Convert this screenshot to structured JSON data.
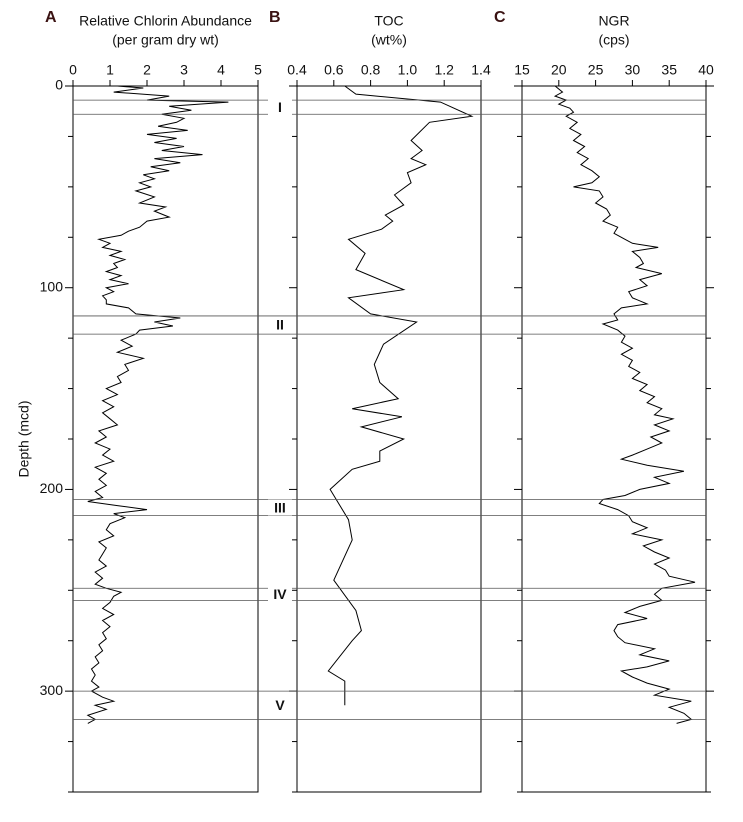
{
  "chart_data": [
    {
      "type": "line",
      "panel": "A",
      "title": "Relative Chlorin Abundance",
      "subtitle": "(per gram dry wt)",
      "ylabel": "Depth (mcd)",
      "color": "#000000",
      "xlim": [
        0,
        5
      ],
      "xticks": [
        0,
        1,
        2,
        3,
        4,
        5
      ],
      "ylim": [
        0,
        350
      ],
      "yticks": [
        0,
        100,
        200,
        300
      ],
      "yminorticks": [
        25,
        50,
        75,
        125,
        150,
        175,
        225,
        250,
        275,
        325,
        350
      ],
      "depth": [
        0,
        1,
        3,
        5,
        7,
        8,
        10,
        12,
        14,
        16,
        18,
        20,
        22,
        24,
        26,
        28,
        30,
        32,
        34,
        36,
        38,
        40,
        42,
        44,
        46,
        48,
        50,
        52,
        55,
        58,
        60,
        62,
        65,
        67,
        70,
        72,
        74,
        76,
        78,
        80,
        82,
        84,
        86,
        88,
        90,
        92,
        94,
        96,
        98,
        100,
        102,
        104,
        106,
        108,
        110,
        113,
        115,
        117,
        119,
        121,
        123,
        126,
        129,
        132,
        135,
        138,
        141,
        144,
        147,
        150,
        153,
        156,
        159,
        162,
        165,
        168,
        171,
        174,
        177,
        180,
        183,
        186,
        189,
        192,
        195,
        198,
        201,
        204,
        206,
        208,
        210,
        212,
        214,
        217,
        220,
        223,
        226,
        229,
        232,
        235,
        238,
        241,
        244,
        247,
        249,
        251,
        253,
        256,
        259,
        262,
        265,
        268,
        271,
        274,
        277,
        280,
        283,
        286,
        289,
        292,
        295,
        298,
        300,
        303,
        305,
        307,
        309,
        312,
        314,
        316
      ],
      "values": [
        1.2,
        1.9,
        1.1,
        2.6,
        2.0,
        4.2,
        2.6,
        3.2,
        2.4,
        3.0,
        2.8,
        2.3,
        3.1,
        2.0,
        2.8,
        2.2,
        3.0,
        2.4,
        3.5,
        2.2,
        2.9,
        2.1,
        2.6,
        1.9,
        2.2,
        1.8,
        2.1,
        1.7,
        2.2,
        1.8,
        2.5,
        2.2,
        2.6,
        2.0,
        1.8,
        1.5,
        1.3,
        0.7,
        1.0,
        0.8,
        1.3,
        1.0,
        1.4,
        1.1,
        1.2,
        0.9,
        1.3,
        1.0,
        1.5,
        0.9,
        1.1,
        0.8,
        0.9,
        0.9,
        1.5,
        1.7,
        2.9,
        2.2,
        2.7,
        1.8,
        1.7,
        1.3,
        1.6,
        1.2,
        1.9,
        1.4,
        1.5,
        1.2,
        1.3,
        0.9,
        1.2,
        0.8,
        1.1,
        0.8,
        1.0,
        1.2,
        0.7,
        0.9,
        0.6,
        1.0,
        0.8,
        1.1,
        0.6,
        0.9,
        0.7,
        0.9,
        0.6,
        0.8,
        0.4,
        1.2,
        2.0,
        1.1,
        1.4,
        1.0,
        0.9,
        1.1,
        0.7,
        0.9,
        0.8,
        0.7,
        0.9,
        0.6,
        0.8,
        0.6,
        0.9,
        1.3,
        1.1,
        1.0,
        0.8,
        1.1,
        0.8,
        1.0,
        0.8,
        0.9,
        0.7,
        0.8,
        0.6,
        0.7,
        0.5,
        0.6,
        0.5,
        0.7,
        0.5,
        0.8,
        1.1,
        0.6,
        0.9,
        0.4,
        0.6,
        0.4
      ]
    },
    {
      "type": "line",
      "panel": "B",
      "title": "TOC",
      "subtitle": "(wt%)",
      "color": "#000000",
      "xlim": [
        0.4,
        1.4
      ],
      "xticks": [
        0.4,
        0.6,
        0.8,
        {
          "value": 1.0,
          "label": "1.0"
        },
        1.2,
        1.4
      ],
      "ylim": [
        0,
        350
      ],
      "yticks": [
        0,
        100,
        200,
        300
      ],
      "yminorticks": [
        25,
        50,
        75,
        125,
        150,
        175,
        225,
        250,
        275,
        325,
        350
      ],
      "depth": [
        0,
        4,
        8,
        15,
        18,
        27,
        32,
        36,
        39,
        43,
        48,
        54,
        59,
        64,
        67,
        71,
        76,
        83,
        91,
        101,
        105,
        113,
        117,
        128,
        138,
        147,
        155,
        160,
        164,
        169,
        175,
        181,
        186,
        190,
        200,
        215,
        225,
        245,
        260,
        270,
        275,
        290,
        295,
        307
      ],
      "values": [
        0.66,
        0.72,
        1.18,
        1.35,
        1.12,
        1.02,
        1.08,
        1.02,
        1.1,
        1.0,
        1.02,
        0.93,
        0.98,
        0.88,
        0.92,
        0.86,
        0.68,
        0.77,
        0.72,
        0.98,
        0.68,
        0.8,
        1.05,
        0.87,
        0.82,
        0.85,
        0.95,
        0.7,
        0.97,
        0.75,
        0.98,
        0.85,
        0.85,
        0.7,
        0.58,
        0.68,
        0.7,
        0.6,
        0.72,
        0.75,
        0.7,
        0.57,
        0.66,
        0.66
      ]
    },
    {
      "type": "line",
      "panel": "C",
      "title": "NGR",
      "subtitle": "(cps)",
      "color": "#000000",
      "xlim": [
        15,
        40
      ],
      "xticks": [
        15,
        20,
        25,
        30,
        35,
        40
      ],
      "ylim": [
        0,
        350
      ],
      "yticks": [
        0,
        100,
        200,
        300
      ],
      "yminorticks": [
        25,
        50,
        75,
        125,
        150,
        175,
        225,
        250,
        275,
        325,
        350
      ],
      "depth": [
        0,
        3,
        5,
        7,
        9,
        11,
        13,
        15,
        18,
        21,
        24,
        27,
        30,
        33,
        36,
        39,
        42,
        45,
        48,
        50,
        52,
        55,
        58,
        61,
        64,
        67,
        70,
        73,
        76,
        78,
        80,
        82,
        85,
        88,
        90,
        93,
        96,
        99,
        102,
        105,
        108,
        110,
        113,
        116,
        118,
        121,
        124,
        127,
        130,
        133,
        136,
        139,
        142,
        145,
        148,
        151,
        154,
        157,
        160,
        163,
        165,
        168,
        171,
        174,
        177,
        180,
        183,
        185,
        188,
        191,
        194,
        197,
        200,
        203,
        205,
        207,
        210,
        213,
        216,
        219,
        222,
        225,
        228,
        231,
        234,
        237,
        240,
        243,
        246,
        249,
        252,
        255,
        258,
        261,
        264,
        267,
        270,
        273,
        276,
        279,
        282,
        285,
        288,
        290,
        293,
        296,
        299,
        302,
        305,
        308,
        311,
        314,
        316
      ],
      "values": [
        19.5,
        20.5,
        19.5,
        21,
        20,
        21.5,
        22,
        21,
        22.5,
        21.5,
        23,
        22,
        23.5,
        22.5,
        24,
        23,
        24.5,
        25.5,
        24.5,
        22,
        25.5,
        26,
        25,
        26.5,
        27,
        26,
        28,
        27.5,
        29,
        30,
        33.5,
        30,
        31,
        31.5,
        30.5,
        34,
        31,
        32,
        29.5,
        30,
        32,
        28.5,
        27.5,
        28,
        26,
        28,
        29,
        28.5,
        30,
        28.5,
        30,
        29.5,
        31,
        30,
        32,
        31,
        33,
        32,
        34,
        33,
        35.5,
        33,
        35,
        32.5,
        34,
        32,
        30,
        28.5,
        32,
        37,
        33,
        35,
        31,
        29,
        26,
        25.5,
        28,
        29.5,
        30,
        32,
        30,
        34,
        31.5,
        33,
        35,
        33,
        34.5,
        35,
        38.5,
        34,
        33,
        34,
        31,
        29,
        32,
        28,
        27.5,
        28,
        29,
        33,
        31,
        35,
        32,
        28.5,
        30,
        32,
        35,
        33,
        38,
        35,
        37,
        38,
        36
      ]
    }
  ],
  "zones": [
    {
      "label": "I",
      "top": 7,
      "bottom": 14
    },
    {
      "label": "II",
      "top": 114,
      "bottom": 123
    },
    {
      "label": "III",
      "top": 205,
      "bottom": 213
    },
    {
      "label": "IV",
      "top": 249,
      "bottom": 255
    },
    {
      "label": "V",
      "top": 300,
      "bottom": 314
    }
  ]
}
